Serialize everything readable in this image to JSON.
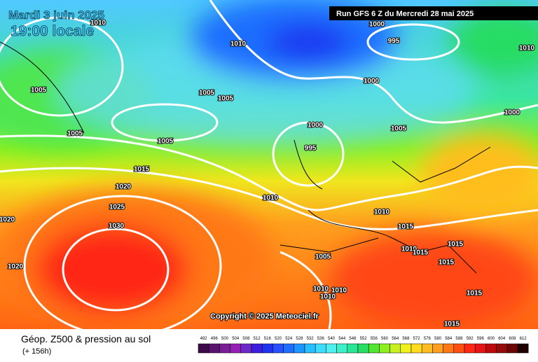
{
  "header": {
    "date": "Mardi 3 juin 2025",
    "time": "19:00 locale",
    "run": "Run GFS 6 Z du Mercredi 28 mai 2025"
  },
  "isobar_labels": [
    1010,
    1010,
    1000,
    995,
    1010,
    1005,
    1005,
    1005,
    1000,
    1000,
    1005,
    1005,
    1000,
    995,
    1005,
    1015,
    1020,
    1025,
    1030,
    1010,
    1010,
    1015,
    1010,
    1015,
    1015,
    1015,
    1020,
    1020,
    1005,
    1010,
    1010,
    1010,
    1015,
    1015
  ],
  "copyright": "Copyright © 2025 Meteociel.fr",
  "footer": {
    "title": "Géop. Z500 & pression au sol",
    "lead": "(+ 156h)"
  },
  "legend": {
    "values": [
      492,
      496,
      500,
      504,
      508,
      512,
      516,
      520,
      524,
      528,
      532,
      536,
      540,
      544,
      548,
      552,
      556,
      560,
      564,
      568,
      572,
      576,
      580,
      584,
      588,
      592,
      596,
      600,
      604,
      608,
      612
    ],
    "colors": [
      "#3c0a46",
      "#5a1470",
      "#7a1e96",
      "#961eb4",
      "#6e28c8",
      "#3c1edc",
      "#1e32f0",
      "#2850ff",
      "#1e6eff",
      "#1e96ff",
      "#28beff",
      "#3cdcff",
      "#50f0f0",
      "#3cf0c8",
      "#28e696",
      "#28dc64",
      "#50e632",
      "#8cf01e",
      "#c8f01e",
      "#f0f01e",
      "#ffdc1e",
      "#ffbe1e",
      "#ffa01e",
      "#ff7814",
      "#ff5014",
      "#ff2814",
      "#e61414",
      "#be0a0a",
      "#960a0a",
      "#6e0505",
      "#1e0000"
    ]
  }
}
